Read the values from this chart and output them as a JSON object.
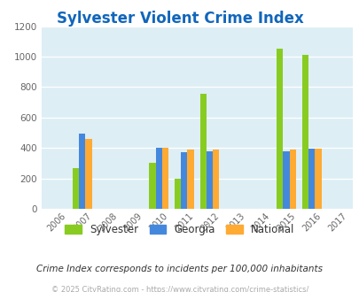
{
  "title": "Sylvester Violent Crime Index",
  "years": [
    2006,
    2007,
    2008,
    2009,
    2010,
    2011,
    2012,
    2013,
    2014,
    2015,
    2016,
    2017
  ],
  "sylvester": [
    0,
    270,
    0,
    0,
    305,
    195,
    755,
    0,
    0,
    1055,
    1010,
    0
  ],
  "georgia": [
    0,
    495,
    0,
    0,
    400,
    370,
    375,
    0,
    0,
    375,
    395,
    0
  ],
  "national": [
    0,
    460,
    0,
    0,
    400,
    390,
    390,
    0,
    0,
    390,
    395,
    0
  ],
  "color_sylvester": "#88cc22",
  "color_georgia": "#4488dd",
  "color_national": "#ffaa33",
  "bg_color": "#ddeef5",
  "ylim": [
    0,
    1200
  ],
  "yticks": [
    0,
    200,
    400,
    600,
    800,
    1000,
    1200
  ],
  "subtitle": "Crime Index corresponds to incidents per 100,000 inhabitants",
  "footer": "© 2025 CityRating.com - https://www.cityrating.com/crime-statistics/",
  "legend_labels": [
    "Sylvester",
    "Georgia",
    "National"
  ],
  "bar_width": 0.25
}
